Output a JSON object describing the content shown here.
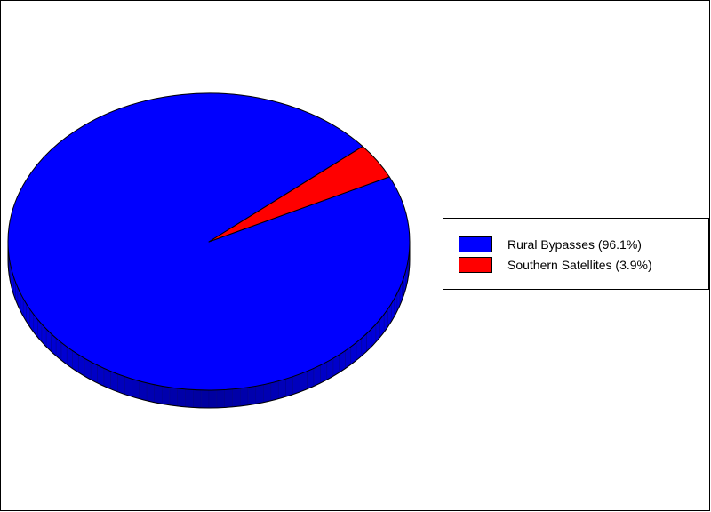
{
  "chart_data": {
    "type": "pie",
    "style": "3d",
    "slices": [
      {
        "label": "Rural Bypasses",
        "value": 96.1,
        "color": "#0000ff"
      },
      {
        "label": "Southern Satellites",
        "value": 3.9,
        "color": "#ff0000"
      }
    ],
    "legend": {
      "placement": "right",
      "entries": [
        {
          "text": "Rural Bypasses (96.1%)",
          "color": "#0000ff"
        },
        {
          "text": "Southern Satellites (3.9%)",
          "color": "#ff0000"
        }
      ]
    },
    "colors": {
      "outline": "#000000",
      "background": "#ffffff"
    }
  }
}
